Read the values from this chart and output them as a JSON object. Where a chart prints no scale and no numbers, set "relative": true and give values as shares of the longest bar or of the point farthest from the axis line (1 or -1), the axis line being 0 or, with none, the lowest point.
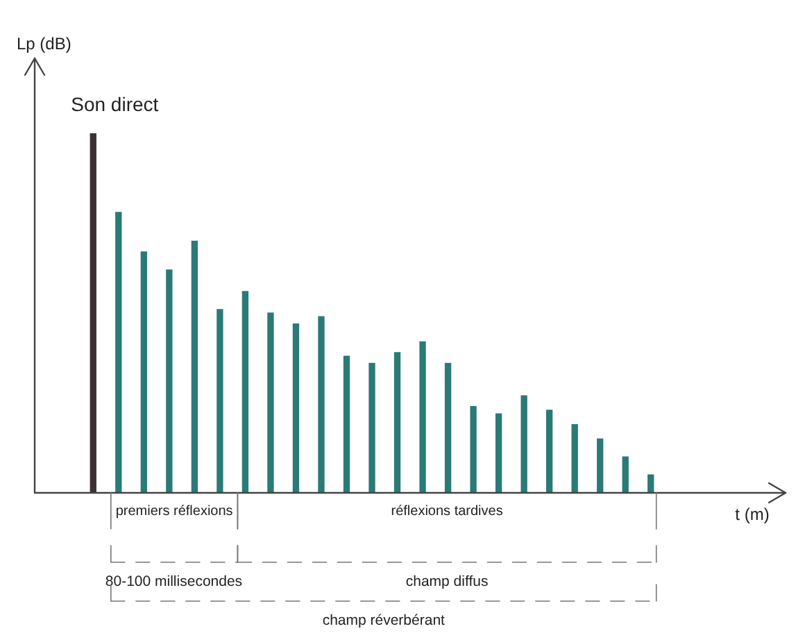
{
  "chart_data": {
    "type": "bar",
    "relative": true,
    "ylabel": "Lp (dB)",
    "xlabel": "t (m)",
    "categories": [
      null,
      null,
      null,
      null,
      null,
      null,
      null,
      null,
      null,
      null,
      null,
      null,
      null,
      null,
      null,
      null,
      null,
      null,
      null,
      null,
      null,
      null,
      null
    ],
    "values": [
      1,
      0.78,
      0.67,
      0.62,
      0.7,
      0.51,
      0.56,
      0.5,
      0.47,
      0.49,
      0.38,
      0.36,
      0.39,
      0.42,
      0.36,
      0.24,
      0.22,
      0.27,
      0.23,
      0.19,
      0.15,
      0.1,
      0.05
    ],
    "colors": [
      "#3b3135",
      "#2a7a76",
      "#2a7a76",
      "#2a7a76",
      "#2a7a76",
      "#2a7a76",
      "#2a7a76",
      "#2a7a76",
      "#2a7a76",
      "#2a7a76",
      "#2a7a76",
      "#2a7a76",
      "#2a7a76",
      "#2a7a76",
      "#2a7a76",
      "#2a7a76",
      "#2a7a76",
      "#2a7a76",
      "#2a7a76",
      "#2a7a76",
      "#2a7a76",
      "#2a7a76",
      "#2a7a76"
    ],
    "annotations": [
      "Son direct",
      "premiers réflexions",
      "réflexions tardives",
      "80-100 millisecondes",
      "champ diffus",
      "champ réverbérant"
    ]
  }
}
